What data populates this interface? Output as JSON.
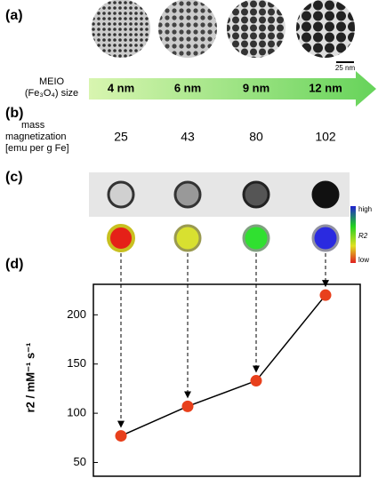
{
  "panel_a": {
    "label": "(a)",
    "size_label": [
      "MEIO",
      "(Fe₃O₄) size"
    ],
    "scale_bar": "25 nm",
    "sizes": [
      "4 nm",
      "6 nm",
      "9 nm",
      "12 nm"
    ]
  },
  "panel_b": {
    "label": "(b)",
    "row_label": [
      "mass",
      "magnetization",
      "[emu per g Fe]"
    ],
    "values": [
      25,
      43,
      80,
      102
    ]
  },
  "panel_c": {
    "label": "(c)",
    "colorbar": {
      "high": "high",
      "name": "R2",
      "low": "low"
    }
  },
  "panel_d": {
    "label": "(d)"
  },
  "chart_data": {
    "type": "line",
    "ylabel": "r2 / mM⁻¹ s⁻¹",
    "categories": [
      null,
      null,
      null,
      null
    ],
    "values": [
      77,
      107,
      133,
      220
    ],
    "marker_color": "#e8401c",
    "line_color": "#000000",
    "ylim": [
      36,
      231
    ],
    "yticks": [
      50,
      100,
      150,
      200
    ]
  }
}
